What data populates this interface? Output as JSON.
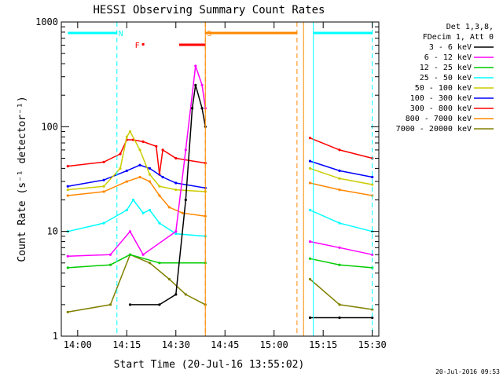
{
  "chart_data": {
    "type": "line",
    "title": "HESSI Observing Summary Count Rates",
    "xlabel": "Start Time (20-Jul-16 13:55:02)",
    "ylabel": "Count Rate (s⁻¹ detector⁻¹)",
    "yscale": "log",
    "ylim": [
      1,
      1000
    ],
    "xlim": [
      "13:55",
      "15:32"
    ],
    "xticks": [
      "14:00",
      "14:15",
      "14:30",
      "14:45",
      "15:00",
      "15:15",
      "15:30"
    ],
    "yticks": [
      "1",
      "10",
      "100",
      "1000"
    ],
    "legend_header": [
      "Det 1,3,8,",
      "FDecim 1, Att 0"
    ],
    "legend_position": "right",
    "footer": "20-Jul-2016 09:53",
    "series": [
      {
        "name": "3 - 6 keV",
        "color": "#000000",
        "points": [
          [
            "14:16",
            2.0
          ],
          [
            "14:25",
            2.0
          ],
          [
            "14:30",
            2.5
          ],
          [
            "14:33",
            20
          ],
          [
            "14:35",
            150
          ],
          [
            "14:36",
            250
          ],
          [
            "14:38",
            150
          ],
          [
            "14:39",
            100
          ],
          [
            "15:11",
            1.5
          ],
          [
            "15:20",
            1.5
          ],
          [
            "15:30",
            1.5
          ]
        ]
      },
      {
        "name": "6 - 12 keV",
        "color": "#ff00ff",
        "points": [
          [
            "13:57",
            5.8
          ],
          [
            "14:10",
            6.0
          ],
          [
            "14:16",
            10
          ],
          [
            "14:20",
            6.0
          ],
          [
            "14:30",
            10
          ],
          [
            "14:33",
            60
          ],
          [
            "14:36",
            380
          ],
          [
            "14:38",
            250
          ],
          [
            "14:39",
            150
          ],
          [
            "15:11",
            8.0
          ],
          [
            "15:20",
            7.0
          ],
          [
            "15:30",
            6.0
          ]
        ]
      },
      {
        "name": "12 - 25 keV",
        "color": "#00cc00",
        "points": [
          [
            "13:57",
            4.5
          ],
          [
            "14:10",
            4.8
          ],
          [
            "14:16",
            6.0
          ],
          [
            "14:25",
            5.0
          ],
          [
            "14:39",
            5.0
          ],
          [
            "15:11",
            5.5
          ],
          [
            "15:20",
            4.8
          ],
          [
            "15:30",
            4.5
          ]
        ]
      },
      {
        "name": "25 - 50 keV",
        "color": "#00ffff",
        "points": [
          [
            "13:57",
            10
          ],
          [
            "14:08",
            12
          ],
          [
            "14:15",
            16
          ],
          [
            "14:17",
            20
          ],
          [
            "14:20",
            15
          ],
          [
            "14:22",
            16
          ],
          [
            "14:25",
            12
          ],
          [
            "14:30",
            9.5
          ],
          [
            "14:39",
            9.0
          ],
          [
            "15:11",
            16
          ],
          [
            "15:20",
            12
          ],
          [
            "15:30",
            10
          ]
        ]
      },
      {
        "name": "50 - 100 keV",
        "color": "#cccc00",
        "points": [
          [
            "13:57",
            25
          ],
          [
            "14:08",
            27
          ],
          [
            "14:13",
            40
          ],
          [
            "14:15",
            80
          ],
          [
            "14:16",
            90
          ],
          [
            "14:19",
            60
          ],
          [
            "14:22",
            35
          ],
          [
            "14:25",
            27
          ],
          [
            "14:30",
            25
          ],
          [
            "14:39",
            24
          ],
          [
            "15:11",
            40
          ],
          [
            "15:20",
            32
          ],
          [
            "15:30",
            28
          ]
        ]
      },
      {
        "name": "100 - 300 keV",
        "color": "#0000ff",
        "points": [
          [
            "13:57",
            27
          ],
          [
            "14:08",
            31
          ],
          [
            "14:15",
            38
          ],
          [
            "14:19",
            43
          ],
          [
            "14:22",
            40
          ],
          [
            "14:26",
            33
          ],
          [
            "14:30",
            29
          ],
          [
            "14:39",
            26
          ],
          [
            "15:11",
            47
          ],
          [
            "15:20",
            38
          ],
          [
            "15:30",
            33
          ]
        ]
      },
      {
        "name": "300 - 800 keV",
        "color": "#ff0000",
        "points": [
          [
            "13:57",
            42
          ],
          [
            "14:08",
            46
          ],
          [
            "14:13",
            55
          ],
          [
            "14:15",
            75
          ],
          [
            "14:17",
            75
          ],
          [
            "14:20",
            72
          ],
          [
            "14:24",
            65
          ],
          [
            "14:25",
            35
          ],
          [
            "14:26",
            60
          ],
          [
            "14:30",
            50
          ],
          [
            "14:39",
            45
          ],
          [
            "15:11",
            78
          ],
          [
            "15:20",
            60
          ],
          [
            "15:30",
            50
          ]
        ]
      },
      {
        "name": "800 - 7000 keV",
        "color": "#ff8800",
        "points": [
          [
            "13:57",
            22
          ],
          [
            "14:08",
            24
          ],
          [
            "14:15",
            30
          ],
          [
            "14:19",
            33
          ],
          [
            "14:22",
            30
          ],
          [
            "14:25",
            22
          ],
          [
            "14:28",
            17
          ],
          [
            "14:32",
            15
          ],
          [
            "14:39",
            14
          ],
          [
            "15:11",
            29
          ],
          [
            "15:20",
            25
          ],
          [
            "15:30",
            22
          ]
        ]
      },
      {
        "name": "7000 - 20000 keV",
        "color": "#808000",
        "points": [
          [
            "13:57",
            1.7
          ],
          [
            "14:10",
            2.0
          ],
          [
            "14:16",
            6.0
          ],
          [
            "14:22",
            5.0
          ],
          [
            "14:28",
            3.5
          ],
          [
            "14:33",
            2.5
          ],
          [
            "14:39",
            2.0
          ],
          [
            "15:11",
            3.5
          ],
          [
            "15:20",
            2.0
          ],
          [
            "15:30",
            1.8
          ]
        ]
      }
    ],
    "annotations": [
      {
        "label": "N",
        "color": "#00ffff",
        "type": "dashed-vline",
        "x": "14:12"
      },
      {
        "label": "F",
        "color": "#ff0000",
        "type": "marker",
        "x": "14:17"
      },
      {
        "label": "S",
        "color": "#ff8800",
        "type": "dashed-vline",
        "x": "14:39"
      }
    ],
    "flag_bars": [
      {
        "color": "#00ffff",
        "from": "13:57",
        "to": "14:12"
      },
      {
        "color": "#00ffff",
        "from": "15:12",
        "to": "15:30"
      },
      {
        "color": "#ff0000",
        "from": "14:31",
        "to": "14:39"
      },
      {
        "color": "#ff8800",
        "from": "14:39",
        "to": "15:07"
      }
    ],
    "gaps": [
      {
        "color": "#ff8800",
        "line": "solid",
        "x": "14:39"
      },
      {
        "color": "#ff8800",
        "line": "dashed",
        "x": "15:07"
      },
      {
        "color": "#ff8800",
        "line": "solid",
        "x": "15:09"
      },
      {
        "color": "#00ffff",
        "line": "solid",
        "x": "15:12"
      },
      {
        "color": "#00ffff",
        "line": "dashed",
        "x": "15:30"
      }
    ]
  }
}
